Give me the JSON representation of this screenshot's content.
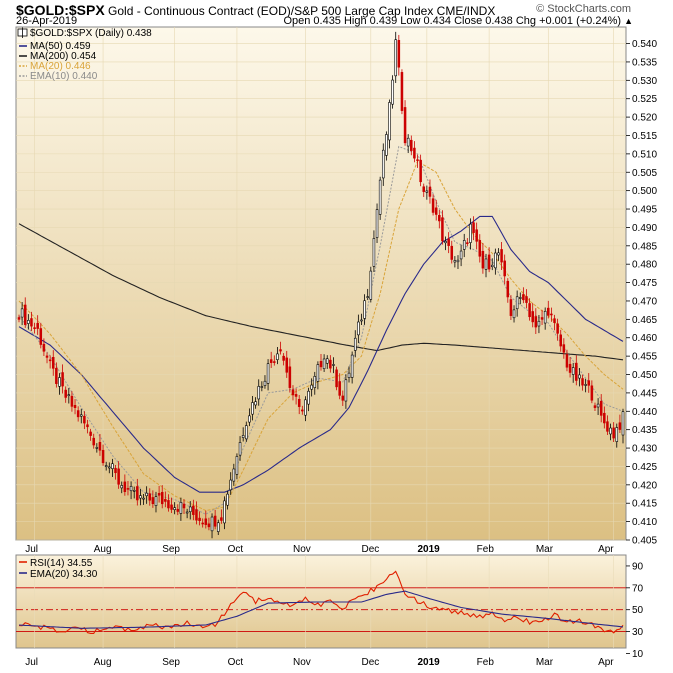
{
  "header": {
    "symbol": "$GOLD:$SPX",
    "description": "Gold - Continuous Contract (EOD)/S&P 500 Large Cap Index  CME/INDX",
    "brand": "© StockCharts.com",
    "date": "26-Apr-2019",
    "ohlc": "Open 0.435  High 0.439  Low 0.434  Close 0.438  Chg +0.001 (+0.24%)",
    "ohlc_arrow": "▲"
  },
  "legend": {
    "main": "$GOLD:$SPX (Daily) 0.438",
    "ma50": "MA(50) 0.459",
    "ma200": "MA(200) 0.454",
    "ma20": "MA(20) 0.446",
    "ema10": "EMA(10) 0.440",
    "rsi": "RSI(14) 34.55",
    "rsi_ema": "EMA(20) 34.30"
  },
  "colors": {
    "panel_top": "#fbf4e2",
    "panel_bottom": "#dfc48a",
    "candle_up": "#ffffff",
    "candle_down": "#cc0000",
    "ma50": "#2a2a8a",
    "ma200": "#222222",
    "ma20": "#d9a43a",
    "ema10": "#9a9a9a",
    "rsi": "#e02000",
    "rsi_ema": "#2a2a8a",
    "rsi_line": "#cc0000"
  },
  "chart_data": [
    {
      "type": "line",
      "title": "$GOLD:$SPX Gold - Continuous Contract (EOD)/S&P 500 Large Cap Index",
      "ylim": [
        0.405,
        0.5445
      ],
      "y_ticks": [
        "0.540",
        "0.535",
        "0.530",
        "0.525",
        "0.520",
        "0.515",
        "0.510",
        "0.505",
        "0.500",
        "0.495",
        "0.490",
        "0.485",
        "0.480",
        "0.475",
        "0.470",
        "0.465",
        "0.460",
        "0.455",
        "0.450",
        "0.445",
        "0.440",
        "0.435",
        "0.430",
        "0.425",
        "0.420",
        "0.415",
        "0.410",
        "0.405"
      ],
      "x_labels": [
        "Jul",
        "Aug",
        "Sep",
        "Oct",
        "Nov",
        "Dec",
        "2019",
        "Feb",
        "Mar",
        "Apr"
      ],
      "close_anchors": [
        {
          "d": 0,
          "v": 0.467
        },
        {
          "d": 6,
          "v": 0.462
        },
        {
          "d": 10,
          "v": 0.452
        },
        {
          "d": 15,
          "v": 0.444
        },
        {
          "d": 20,
          "v": 0.438
        },
        {
          "d": 27,
          "v": 0.428
        },
        {
          "d": 32,
          "v": 0.421
        },
        {
          "d": 38,
          "v": 0.416
        },
        {
          "d": 45,
          "v": 0.416
        },
        {
          "d": 52,
          "v": 0.414
        },
        {
          "d": 58,
          "v": 0.411
        },
        {
          "d": 62,
          "v": 0.41
        },
        {
          "d": 65,
          "v": 0.412
        },
        {
          "d": 69,
          "v": 0.425
        },
        {
          "d": 73,
          "v": 0.438
        },
        {
          "d": 77,
          "v": 0.446
        },
        {
          "d": 80,
          "v": 0.452
        },
        {
          "d": 84,
          "v": 0.458
        },
        {
          "d": 87,
          "v": 0.447
        },
        {
          "d": 90,
          "v": 0.44
        },
        {
          "d": 94,
          "v": 0.446
        },
        {
          "d": 98,
          "v": 0.456
        },
        {
          "d": 101,
          "v": 0.451
        },
        {
          "d": 104,
          "v": 0.443
        },
        {
          "d": 108,
          "v": 0.459
        },
        {
          "d": 112,
          "v": 0.473
        },
        {
          "d": 114,
          "v": 0.487
        },
        {
          "d": 116,
          "v": 0.503
        },
        {
          "d": 119,
          "v": 0.522
        },
        {
          "d": 121,
          "v": 0.54
        },
        {
          "d": 124,
          "v": 0.515
        },
        {
          "d": 127,
          "v": 0.51
        },
        {
          "d": 130,
          "v": 0.5
        },
        {
          "d": 133,
          "v": 0.496
        },
        {
          "d": 137,
          "v": 0.485
        },
        {
          "d": 141,
          "v": 0.48
        },
        {
          "d": 145,
          "v": 0.49
        },
        {
          "d": 149,
          "v": 0.479
        },
        {
          "d": 154,
          "v": 0.483
        },
        {
          "d": 158,
          "v": 0.467
        },
        {
          "d": 162,
          "v": 0.472
        },
        {
          "d": 166,
          "v": 0.462
        },
        {
          "d": 170,
          "v": 0.468
        },
        {
          "d": 173,
          "v": 0.46
        },
        {
          "d": 177,
          "v": 0.451
        },
        {
          "d": 180,
          "v": 0.448
        },
        {
          "d": 184,
          "v": 0.445
        },
        {
          "d": 187,
          "v": 0.438
        },
        {
          "d": 191,
          "v": 0.434
        },
        {
          "d": 194,
          "v": 0.438
        }
      ],
      "ma50": [
        {
          "d": 0,
          "v": 0.463
        },
        {
          "d": 10,
          "v": 0.458
        },
        {
          "d": 20,
          "v": 0.45
        },
        {
          "d": 30,
          "v": 0.44
        },
        {
          "d": 40,
          "v": 0.43
        },
        {
          "d": 50,
          "v": 0.422
        },
        {
          "d": 58,
          "v": 0.418
        },
        {
          "d": 66,
          "v": 0.418
        },
        {
          "d": 72,
          "v": 0.42
        },
        {
          "d": 80,
          "v": 0.424
        },
        {
          "d": 90,
          "v": 0.43
        },
        {
          "d": 100,
          "v": 0.435
        },
        {
          "d": 106,
          "v": 0.441
        },
        {
          "d": 112,
          "v": 0.451
        },
        {
          "d": 118,
          "v": 0.462
        },
        {
          "d": 124,
          "v": 0.472
        },
        {
          "d": 130,
          "v": 0.48
        },
        {
          "d": 136,
          "v": 0.486
        },
        {
          "d": 142,
          "v": 0.489
        },
        {
          "d": 148,
          "v": 0.493
        },
        {
          "d": 152,
          "v": 0.493
        },
        {
          "d": 158,
          "v": 0.484
        },
        {
          "d": 164,
          "v": 0.478
        },
        {
          "d": 170,
          "v": 0.475
        },
        {
          "d": 176,
          "v": 0.47
        },
        {
          "d": 182,
          "v": 0.465
        },
        {
          "d": 188,
          "v": 0.462
        },
        {
          "d": 194,
          "v": 0.459
        }
      ],
      "ma200": [
        {
          "d": 0,
          "v": 0.491
        },
        {
          "d": 15,
          "v": 0.484
        },
        {
          "d": 30,
          "v": 0.477
        },
        {
          "d": 45,
          "v": 0.471
        },
        {
          "d": 60,
          "v": 0.466
        },
        {
          "d": 75,
          "v": 0.463
        },
        {
          "d": 90,
          "v": 0.4605
        },
        {
          "d": 105,
          "v": 0.458
        },
        {
          "d": 115,
          "v": 0.4565
        },
        {
          "d": 123,
          "v": 0.458
        },
        {
          "d": 130,
          "v": 0.4585
        },
        {
          "d": 140,
          "v": 0.458
        },
        {
          "d": 155,
          "v": 0.457
        },
        {
          "d": 170,
          "v": 0.456
        },
        {
          "d": 185,
          "v": 0.455
        },
        {
          "d": 194,
          "v": 0.454
        }
      ],
      "ma20": [
        {
          "d": 0,
          "v": 0.47
        },
        {
          "d": 10,
          "v": 0.461
        },
        {
          "d": 20,
          "v": 0.45
        },
        {
          "d": 30,
          "v": 0.436
        },
        {
          "d": 40,
          "v": 0.423
        },
        {
          "d": 50,
          "v": 0.417
        },
        {
          "d": 60,
          "v": 0.413
        },
        {
          "d": 66,
          "v": 0.414
        },
        {
          "d": 72,
          "v": 0.424
        },
        {
          "d": 80,
          "v": 0.438
        },
        {
          "d": 88,
          "v": 0.445
        },
        {
          "d": 96,
          "v": 0.448
        },
        {
          "d": 104,
          "v": 0.45
        },
        {
          "d": 110,
          "v": 0.455
        },
        {
          "d": 116,
          "v": 0.472
        },
        {
          "d": 122,
          "v": 0.495
        },
        {
          "d": 128,
          "v": 0.508
        },
        {
          "d": 134,
          "v": 0.505
        },
        {
          "d": 140,
          "v": 0.495
        },
        {
          "d": 146,
          "v": 0.488
        },
        {
          "d": 152,
          "v": 0.483
        },
        {
          "d": 158,
          "v": 0.476
        },
        {
          "d": 164,
          "v": 0.47
        },
        {
          "d": 170,
          "v": 0.466
        },
        {
          "d": 176,
          "v": 0.461
        },
        {
          "d": 182,
          "v": 0.455
        },
        {
          "d": 188,
          "v": 0.45
        },
        {
          "d": 194,
          "v": 0.446
        }
      ],
      "ema10": [
        {
          "d": 0,
          "v": 0.466
        },
        {
          "d": 10,
          "v": 0.455
        },
        {
          "d": 20,
          "v": 0.441
        },
        {
          "d": 30,
          "v": 0.428
        },
        {
          "d": 40,
          "v": 0.418
        },
        {
          "d": 50,
          "v": 0.416
        },
        {
          "d": 60,
          "v": 0.412
        },
        {
          "d": 66,
          "v": 0.415
        },
        {
          "d": 72,
          "v": 0.43
        },
        {
          "d": 80,
          "v": 0.445
        },
        {
          "d": 88,
          "v": 0.446
        },
        {
          "d": 96,
          "v": 0.449
        },
        {
          "d": 104,
          "v": 0.448
        },
        {
          "d": 110,
          "v": 0.46
        },
        {
          "d": 116,
          "v": 0.485
        },
        {
          "d": 122,
          "v": 0.512
        },
        {
          "d": 128,
          "v": 0.51
        },
        {
          "d": 134,
          "v": 0.497
        },
        {
          "d": 140,
          "v": 0.486
        },
        {
          "d": 146,
          "v": 0.484
        },
        {
          "d": 152,
          "v": 0.481
        },
        {
          "d": 158,
          "v": 0.471
        },
        {
          "d": 164,
          "v": 0.467
        },
        {
          "d": 170,
          "v": 0.464
        },
        {
          "d": 176,
          "v": 0.456
        },
        {
          "d": 182,
          "v": 0.449
        },
        {
          "d": 188,
          "v": 0.442
        },
        {
          "d": 194,
          "v": 0.44
        }
      ]
    },
    {
      "type": "line",
      "title": "RSI(14)",
      "ylim": [
        15,
        100
      ],
      "y_ticks": [
        "90",
        "70",
        "50",
        "30",
        "10"
      ],
      "hlines": [
        70,
        50,
        30
      ],
      "x_labels": [
        "Jul",
        "Aug",
        "Sep",
        "Oct",
        "Nov",
        "Dec",
        "2019",
        "Feb",
        "Mar",
        "Apr"
      ],
      "rsi_anchors": [
        {
          "d": 0,
          "v": 38
        },
        {
          "d": 6,
          "v": 35
        },
        {
          "d": 12,
          "v": 30
        },
        {
          "d": 18,
          "v": 33
        },
        {
          "d": 24,
          "v": 30
        },
        {
          "d": 30,
          "v": 34
        },
        {
          "d": 36,
          "v": 32
        },
        {
          "d": 42,
          "v": 36
        },
        {
          "d": 48,
          "v": 33
        },
        {
          "d": 54,
          "v": 38
        },
        {
          "d": 60,
          "v": 34
        },
        {
          "d": 64,
          "v": 38
        },
        {
          "d": 68,
          "v": 56
        },
        {
          "d": 72,
          "v": 66
        },
        {
          "d": 76,
          "v": 58
        },
        {
          "d": 80,
          "v": 62
        },
        {
          "d": 84,
          "v": 56
        },
        {
          "d": 88,
          "v": 52
        },
        {
          "d": 92,
          "v": 60
        },
        {
          "d": 96,
          "v": 54
        },
        {
          "d": 100,
          "v": 58
        },
        {
          "d": 104,
          "v": 52
        },
        {
          "d": 108,
          "v": 60
        },
        {
          "d": 112,
          "v": 66
        },
        {
          "d": 116,
          "v": 72
        },
        {
          "d": 119,
          "v": 82
        },
        {
          "d": 121,
          "v": 86
        },
        {
          "d": 124,
          "v": 62
        },
        {
          "d": 128,
          "v": 58
        },
        {
          "d": 132,
          "v": 52
        },
        {
          "d": 136,
          "v": 50
        },
        {
          "d": 140,
          "v": 48
        },
        {
          "d": 144,
          "v": 46
        },
        {
          "d": 148,
          "v": 44
        },
        {
          "d": 152,
          "v": 48
        },
        {
          "d": 156,
          "v": 38
        },
        {
          "d": 160,
          "v": 44
        },
        {
          "d": 164,
          "v": 38
        },
        {
          "d": 168,
          "v": 40
        },
        {
          "d": 172,
          "v": 46
        },
        {
          "d": 176,
          "v": 38
        },
        {
          "d": 180,
          "v": 40
        },
        {
          "d": 184,
          "v": 36
        },
        {
          "d": 188,
          "v": 32
        },
        {
          "d": 192,
          "v": 30
        },
        {
          "d": 194,
          "v": 34.55
        }
      ],
      "rsi_ema": [
        {
          "d": 0,
          "v": 36
        },
        {
          "d": 20,
          "v": 33
        },
        {
          "d": 40,
          "v": 34
        },
        {
          "d": 60,
          "v": 36
        },
        {
          "d": 70,
          "v": 44
        },
        {
          "d": 80,
          "v": 56
        },
        {
          "d": 95,
          "v": 57
        },
        {
          "d": 110,
          "v": 57
        },
        {
          "d": 118,
          "v": 64
        },
        {
          "d": 124,
          "v": 67
        },
        {
          "d": 132,
          "v": 60
        },
        {
          "d": 142,
          "v": 52
        },
        {
          "d": 155,
          "v": 46
        },
        {
          "d": 170,
          "v": 42
        },
        {
          "d": 185,
          "v": 37
        },
        {
          "d": 194,
          "v": 34.3
        }
      ]
    }
  ]
}
